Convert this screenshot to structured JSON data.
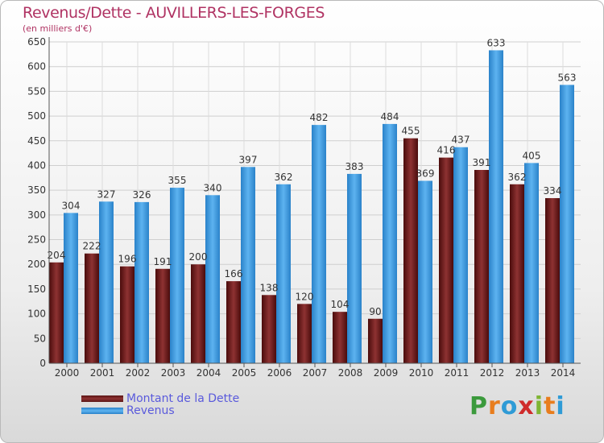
{
  "header": {
    "title": "Revenus/Dette - AUVILLERS-LES-FORGES",
    "subtitle": "(en milliers d'€)"
  },
  "logo": {
    "letters": [
      "P",
      "r",
      "o",
      "x",
      "i",
      "t",
      "i"
    ],
    "colors": [
      "#3b9a3c",
      "#e87d1d",
      "#2f9bd6",
      "#cf2b2b",
      "#7fb534",
      "#e87d1d",
      "#2f9bd6"
    ]
  },
  "chart_data": {
    "type": "bar",
    "categories": [
      "2000",
      "2001",
      "2002",
      "2003",
      "2004",
      "2005",
      "2006",
      "2007",
      "2008",
      "2009",
      "2010",
      "2011",
      "2012",
      "2013",
      "2014"
    ],
    "series": [
      {
        "name": "Montant de la Dette",
        "color": "#6e1c1c",
        "values": [
          204,
          222,
          196,
          191,
          200,
          166,
          138,
          120,
          104,
          90,
          455,
          416,
          391,
          362,
          334
        ]
      },
      {
        "name": "Revenus",
        "color": "#3d9be3",
        "values": [
          304,
          327,
          326,
          355,
          340,
          397,
          362,
          482,
          383,
          484,
          369,
          437,
          633,
          405,
          563
        ]
      }
    ],
    "yticks": [
      0,
      50,
      100,
      150,
      200,
      250,
      300,
      350,
      400,
      450,
      500,
      550,
      600,
      650
    ],
    "ylim": [
      0,
      650
    ],
    "grid": true,
    "legend_position": "bottom-left"
  }
}
